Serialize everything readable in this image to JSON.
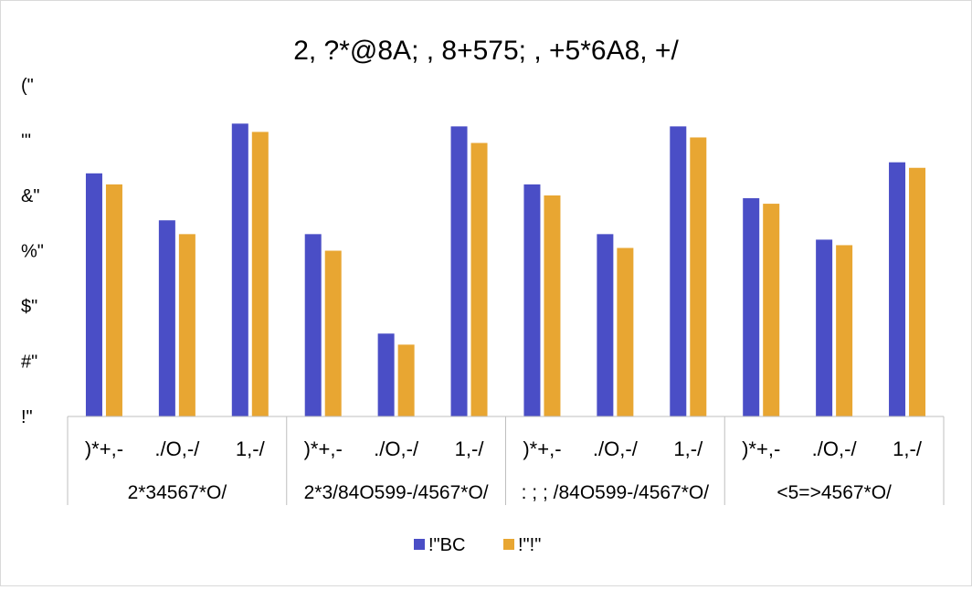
{
  "chart_data": {
    "type": "bar",
    "title": "2, ?*@8A; , 8+575; , +5*6A8, +/",
    "xlabel": "",
    "ylabel": "",
    "ylim": [
      0,
      120
    ],
    "yticks": [
      {
        "value": 0,
        "label": "!\""
      },
      {
        "value": 20,
        "label": "#\""
      },
      {
        "value": 40,
        "label": "$\""
      },
      {
        "value": 60,
        "label": "%\""
      },
      {
        "value": 80,
        "label": "&\""
      },
      {
        "value": 100,
        "label": "'\""
      },
      {
        "value": 120,
        "label": "(\""
      }
    ],
    "categories": [
      ")*+,-",
      "./O,-/",
      "1,-/",
      ")*+,-",
      "./O,-/",
      "1,-/",
      ")*+,-",
      "./O,-/",
      "1,-/",
      ")*+,-",
      "./O,-/",
      "1,-/"
    ],
    "groups": [
      "2*34567*O/",
      "2*3/84O599-/4567*O/",
      ": ; ; /84O599-/4567*O/",
      "<5=>4567*O/"
    ],
    "series": [
      {
        "name": "!\"BC",
        "color": "#4a4ec6",
        "values": [
          88,
          71,
          106,
          66,
          30,
          105,
          84,
          66,
          105,
          79,
          64,
          92
        ]
      },
      {
        "name": "!\"!\"",
        "color": "#e8a632",
        "values": [
          84,
          66,
          103,
          60,
          26,
          99,
          80,
          61,
          101,
          77,
          62,
          90
        ]
      }
    ],
    "grid": false,
    "legend_position": "bottom"
  }
}
